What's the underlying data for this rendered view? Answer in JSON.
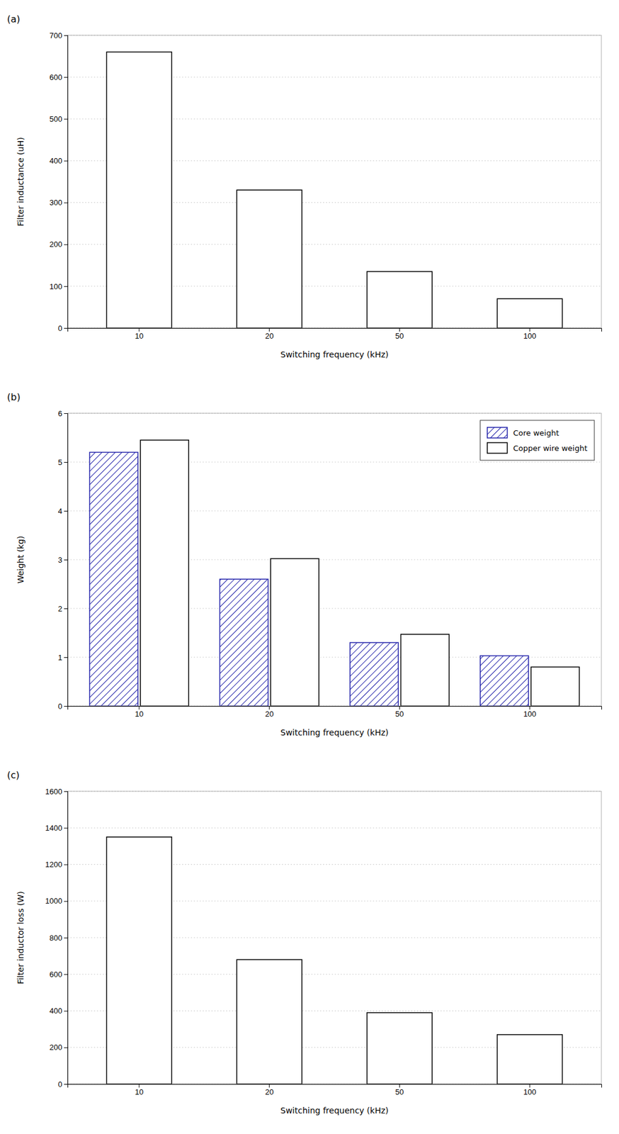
{
  "chart_data": [
    {
      "type": "bar",
      "title": "(a)",
      "categories": [
        "10",
        "20",
        "50",
        "100"
      ],
      "values": [
        660,
        330,
        135,
        70
      ],
      "color": "#000000",
      "xlabel": "Switching frequency (kHz)",
      "ylabel": "Filter inductance (uH)",
      "ylim": [
        0,
        700
      ],
      "yticks": [
        0,
        100,
        200,
        300,
        400,
        500,
        600,
        700
      ],
      "grid": true
    },
    {
      "type": "bar",
      "title": "(b)",
      "categories": [
        "10",
        "20",
        "50",
        "100"
      ],
      "series": [
        {
          "name": "Core weight",
          "color": "#2222aa",
          "values": [
            5.2,
            2.6,
            1.3,
            1.03
          ]
        },
        {
          "name": "Copper wire weight",
          "color": "#000000",
          "values": [
            5.45,
            3.02,
            1.47,
            0.8
          ]
        }
      ],
      "xlabel": "Switching frequency (kHz)",
      "ylabel": "Weight (kg)",
      "ylim": [
        0,
        6
      ],
      "yticks": [
        0,
        1,
        2,
        3,
        4,
        5,
        6
      ],
      "grid": true,
      "legend": "upper right"
    },
    {
      "type": "bar",
      "title": "(c)",
      "categories": [
        "10",
        "20",
        "50",
        "100"
      ],
      "values": [
        1350,
        680,
        390,
        270
      ],
      "color": "#000000",
      "xlabel": "Switching frequency (kHz)",
      "ylabel": "Filter inductor loss (W)",
      "ylim": [
        0,
        1600
      ],
      "yticks": [
        0,
        200,
        400,
        600,
        800,
        1000,
        1200,
        1400,
        1600
      ],
      "grid": true
    }
  ]
}
